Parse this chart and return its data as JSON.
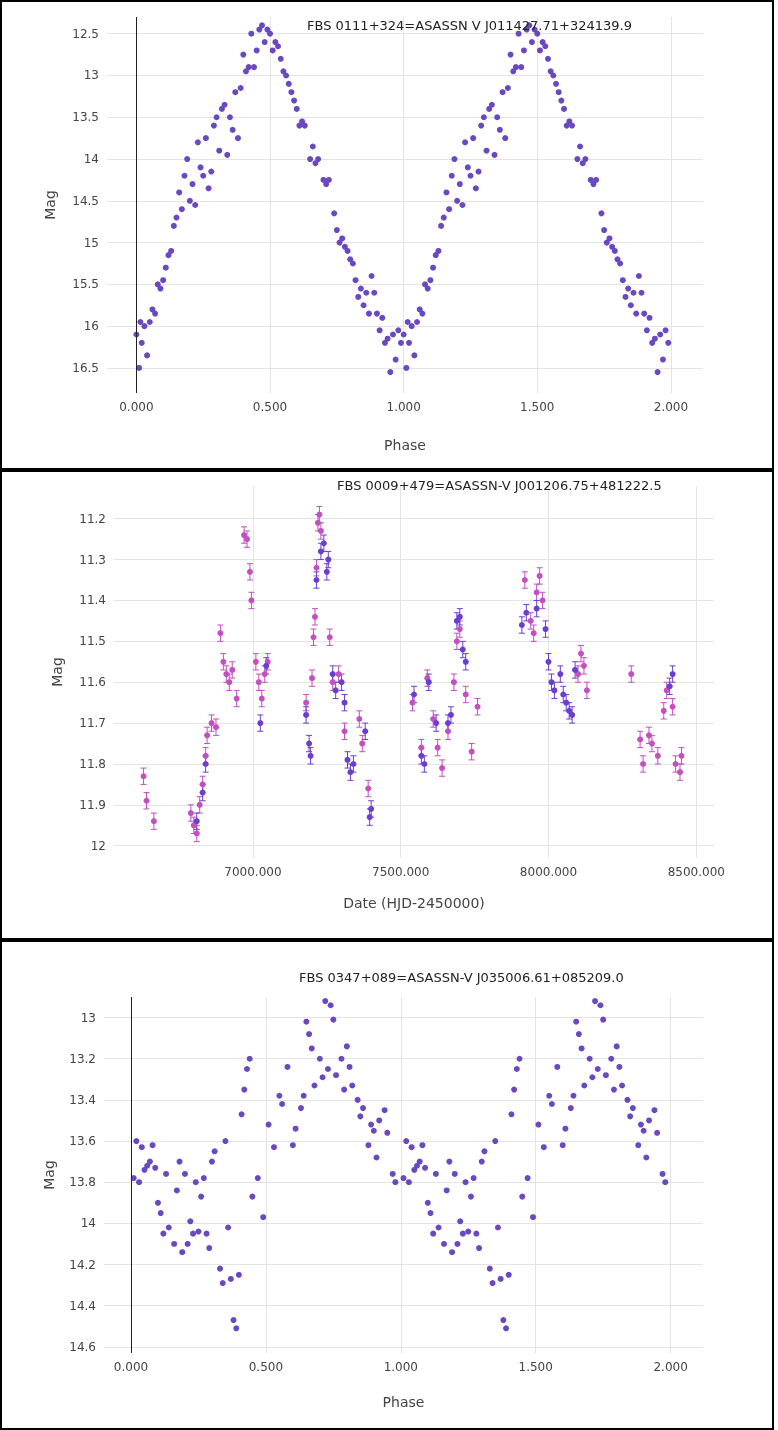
{
  "chart_data": [
    {
      "type": "scatter",
      "title": "FBS 0111+324=ASASSN V J011427.71+324139.9",
      "xlabel": "Phase",
      "ylabel": "Mag",
      "grid": true,
      "marker": "circle",
      "xlim": [
        -0.11,
        2.12
      ],
      "ylim": [
        16.8,
        12.3
      ],
      "xticks": [
        {
          "value": 0,
          "label": "0.000"
        },
        {
          "value": 0.5,
          "label": "0.500"
        },
        {
          "value": 1,
          "label": "1.000"
        },
        {
          "value": 1.5,
          "label": "1.500"
        },
        {
          "value": 2,
          "label": "2.000"
        }
      ],
      "yticks": [
        12.5,
        13,
        13.5,
        14,
        14.5,
        15,
        15.5,
        16,
        16.5
      ],
      "ref_lines": [
        {
          "axis": "x",
          "value": 0,
          "color": "#222222"
        }
      ],
      "series": [
        {
          "color": "#6a48c0",
          "x": [
            0,
            0.01,
            0.015,
            0.02,
            0.03,
            0.04,
            0.05,
            0.06,
            0.07,
            0.08,
            0.09,
            0.1,
            0.11,
            0.12,
            0.13,
            0.14,
            0.15,
            0.16,
            0.17,
            0.18,
            0.19,
            0.2,
            0.21,
            0.22,
            0.23,
            0.24,
            0.25,
            0.26,
            0.27,
            0.28,
            0.29,
            0.3,
            0.31,
            0.32,
            0.33,
            0.34,
            0.35,
            0.36,
            0.37,
            0.38,
            0.39,
            0.4,
            0.41,
            0.42,
            0.43,
            0.44,
            0.45,
            0.46,
            0.47,
            0.48,
            0.49,
            0.5,
            0.51,
            0.52,
            0.53,
            0.54,
            0.55,
            0.56,
            0.57,
            0.58,
            0.59,
            0.6,
            0.61,
            0.62,
            0.63,
            0.65,
            0.66,
            0.67,
            0.68,
            0.7,
            0.71,
            0.72,
            0.74,
            0.75,
            0.76,
            0.77,
            0.78,
            0.79,
            0.8,
            0.81,
            0.82,
            0.83,
            0.84,
            0.85,
            0.86,
            0.87,
            0.88,
            0.89,
            0.9,
            0.91,
            0.92,
            0.93,
            0.94,
            0.95,
            0.96,
            0.97,
            0.98,
            0.99,
            1,
            1.01,
            1.015,
            1.02,
            1.03,
            1.04,
            1.05,
            1.06,
            1.07,
            1.08,
            1.09,
            1.1,
            1.11,
            1.12,
            1.13,
            1.14,
            1.15,
            1.16,
            1.17,
            1.18,
            1.19,
            1.2,
            1.21,
            1.22,
            1.23,
            1.24,
            1.25,
            1.26,
            1.27,
            1.28,
            1.29,
            1.3,
            1.31,
            1.32,
            1.33,
            1.34,
            1.35,
            1.36,
            1.37,
            1.38,
            1.39,
            1.4,
            1.41,
            1.42,
            1.43,
            1.44,
            1.45,
            1.46,
            1.47,
            1.48,
            1.49,
            1.5,
            1.51,
            1.52,
            1.53,
            1.54,
            1.55,
            1.56,
            1.57,
            1.58,
            1.59,
            1.6,
            1.61,
            1.62,
            1.63,
            1.65,
            1.66,
            1.67,
            1.68,
            1.7,
            1.71,
            1.72,
            1.74,
            1.75,
            1.76,
            1.77,
            1.78,
            1.79,
            1.8,
            1.81,
            1.82,
            1.83,
            1.84,
            1.85,
            1.86,
            1.87,
            1.88,
            1.89,
            1.9,
            1.91,
            1.92,
            1.93,
            1.94,
            1.95,
            1.96,
            1.97,
            1.98,
            1.99
          ],
          "values": [
            16.1,
            16.5,
            15.95,
            16.2,
            16.0,
            16.35,
            15.95,
            15.8,
            15.85,
            15.5,
            15.55,
            15.45,
            15.3,
            15.15,
            15.1,
            14.8,
            14.7,
            14.4,
            14.6,
            14.2,
            14.0,
            14.5,
            14.3,
            14.55,
            13.8,
            14.1,
            14.2,
            13.75,
            14.35,
            14.15,
            13.6,
            13.5,
            13.9,
            13.4,
            13.35,
            13.95,
            13.5,
            13.65,
            13.2,
            13.75,
            13.15,
            12.75,
            12.95,
            12.9,
            12.5,
            12.9,
            12.7,
            12.45,
            12.4,
            12.6,
            12.45,
            12.5,
            12.7,
            12.6,
            12.65,
            12.8,
            12.95,
            13.0,
            13.1,
            13.2,
            13.3,
            13.4,
            13.6,
            13.55,
            13.6,
            14.0,
            13.85,
            14.05,
            14.0,
            14.25,
            14.3,
            14.25,
            14.65,
            14.85,
            15.0,
            14.95,
            15.05,
            15.1,
            15.2,
            15.25,
            15.45,
            15.65,
            15.55,
            15.75,
            15.6,
            15.85,
            15.4,
            15.6,
            15.85,
            16.05,
            15.9,
            16.2,
            16.15,
            16.55,
            16.1,
            16.4,
            16.05,
            16.2,
            16.1,
            16.5,
            15.95,
            16.2,
            16.0,
            16.35,
            15.95,
            15.8,
            15.85,
            15.5,
            15.55,
            15.45,
            15.3,
            15.15,
            15.1,
            14.8,
            14.7,
            14.4,
            14.6,
            14.2,
            14.0,
            14.5,
            14.3,
            14.55,
            13.8,
            14.1,
            14.2,
            13.75,
            14.35,
            14.15,
            13.6,
            13.5,
            13.9,
            13.4,
            13.35,
            13.95,
            13.5,
            13.65,
            13.2,
            13.75,
            13.15,
            12.75,
            12.95,
            12.9,
            12.5,
            12.9,
            12.7,
            12.45,
            12.4,
            12.6,
            12.45,
            12.5,
            12.7,
            12.6,
            12.65,
            12.8,
            12.95,
            13.0,
            13.1,
            13.2,
            13.3,
            13.4,
            13.6,
            13.55,
            13.6,
            14.0,
            13.85,
            14.05,
            14.0,
            14.25,
            14.3,
            14.25,
            14.65,
            14.85,
            15.0,
            14.95,
            15.05,
            15.1,
            15.2,
            15.25,
            15.45,
            15.65,
            15.55,
            15.75,
            15.6,
            15.85,
            15.4,
            15.6,
            15.85,
            16.05,
            15.9,
            16.2,
            16.15,
            16.55,
            16.1,
            16.4,
            16.05,
            16.2
          ]
        }
      ]
    },
    {
      "type": "scatter",
      "title": "FBS 0009+479=ASASSN-V J001206.75+481222.5",
      "xlabel": "Date (HJD-2450000)",
      "ylabel": "Mag",
      "grid": true,
      "marker": "circle",
      "xlim": [
        6530,
        8560
      ],
      "ylim": [
        12.03,
        11.12
      ],
      "xticks": [
        {
          "value": 7000,
          "label": "7000.000"
        },
        {
          "value": 7500,
          "label": "7500.000"
        },
        {
          "value": 8000,
          "label": "8000.000"
        },
        {
          "value": 8500,
          "label": "8500.000"
        }
      ],
      "yticks": [
        11.2,
        11.3,
        11.4,
        11.5,
        11.6,
        11.7,
        11.8,
        11.9,
        12
      ],
      "series": [
        {
          "color": "#c34fc0",
          "x": [
            6630,
            6640,
            6665,
            6790,
            6800,
            6810,
            6820,
            6830,
            6840,
            6845,
            6860,
            6875,
            6890,
            6900,
            6910,
            6920,
            6930,
            6945,
            6970,
            6980,
            6990,
            6995,
            7010,
            7020,
            7030,
            7040,
            7050,
            7180,
            7200,
            7205,
            7210,
            7215,
            7220,
            7225,
            7230,
            7260,
            7270,
            7290,
            7310,
            7360,
            7370,
            7390,
            7540,
            7570,
            7590,
            7610,
            7625,
            7640,
            7660,
            7680,
            7690,
            7700,
            7720,
            7740,
            7760,
            7920,
            7940,
            7950,
            7960,
            7970,
            7980,
            8100,
            8110,
            8120,
            8130,
            8280,
            8310,
            8320,
            8340,
            8350,
            8370,
            8390,
            8400,
            8420,
            8430,
            8445,
            8450
          ],
          "values": [
            11.83,
            11.89,
            11.94,
            11.92,
            11.95,
            11.97,
            11.9,
            11.85,
            11.78,
            11.73,
            11.7,
            11.71,
            11.48,
            11.55,
            11.58,
            11.6,
            11.57,
            11.64,
            11.24,
            11.25,
            11.33,
            11.4,
            11.55,
            11.6,
            11.64,
            11.58,
            11.55,
            11.65,
            11.59,
            11.49,
            11.44,
            11.32,
            11.21,
            11.19,
            11.23,
            11.49,
            11.6,
            11.58,
            11.72,
            11.69,
            11.75,
            11.86,
            11.65,
            11.76,
            11.59,
            11.69,
            11.76,
            11.81,
            11.72,
            11.6,
            11.5,
            11.47,
            11.63,
            11.77,
            11.66,
            11.35,
            11.45,
            11.48,
            11.38,
            11.34,
            11.4,
            11.58,
            11.53,
            11.56,
            11.62,
            11.58,
            11.74,
            11.8,
            11.73,
            11.75,
            11.78,
            11.67,
            11.62,
            11.66,
            11.8,
            11.82,
            11.78
          ],
          "errors": [
            0.02,
            0.02,
            0.02,
            0.02,
            0.02,
            0.02,
            0.02,
            0.02,
            0.02,
            0.02,
            0.02,
            0.02,
            0.02,
            0.02,
            0.02,
            0.02,
            0.02,
            0.02,
            0.02,
            0.02,
            0.02,
            0.02,
            0.02,
            0.02,
            0.02,
            0.02,
            0.02,
            0.02,
            0.02,
            0.02,
            0.02,
            0.02,
            0.02,
            0.02,
            0.02,
            0.02,
            0.02,
            0.02,
            0.02,
            0.02,
            0.02,
            0.02,
            0.02,
            0.02,
            0.02,
            0.02,
            0.02,
            0.02,
            0.02,
            0.02,
            0.02,
            0.02,
            0.02,
            0.02,
            0.02,
            0.02,
            0.02,
            0.02,
            0.02,
            0.02,
            0.02,
            0.02,
            0.02,
            0.02,
            0.02,
            0.02,
            0.02,
            0.02,
            0.02,
            0.02,
            0.02,
            0.02,
            0.02,
            0.02,
            0.02,
            0.02,
            0.02
          ]
        },
        {
          "color": "#6a3fd0",
          "x": [
            6810,
            6830,
            6840,
            7025,
            7045,
            7180,
            7190,
            7195,
            7215,
            7230,
            7240,
            7250,
            7255,
            7270,
            7280,
            7300,
            7310,
            7320,
            7330,
            7340,
            7380,
            7395,
            7400,
            7545,
            7570,
            7580,
            7595,
            7620,
            7660,
            7670,
            7690,
            7700,
            7710,
            7720,
            7910,
            7925,
            7960,
            7990,
            8000,
            8010,
            8020,
            8040,
            8050,
            8060,
            8070,
            8080,
            8090,
            8410,
            8420
          ],
          "values": [
            11.94,
            11.87,
            11.8,
            11.7,
            11.56,
            11.68,
            11.75,
            11.78,
            11.35,
            11.28,
            11.26,
            11.33,
            11.3,
            11.58,
            11.62,
            11.6,
            11.65,
            11.79,
            11.82,
            11.8,
            11.72,
            11.93,
            11.91,
            11.63,
            11.78,
            11.8,
            11.6,
            11.7,
            11.7,
            11.68,
            11.45,
            11.44,
            11.52,
            11.55,
            11.46,
            11.43,
            11.42,
            11.47,
            11.55,
            11.6,
            11.62,
            11.58,
            11.63,
            11.65,
            11.67,
            11.68,
            11.57,
            11.61,
            11.58
          ],
          "errors": [
            0.02,
            0.02,
            0.02,
            0.02,
            0.02,
            0.02,
            0.02,
            0.02,
            0.02,
            0.02,
            0.02,
            0.02,
            0.02,
            0.02,
            0.02,
            0.02,
            0.02,
            0.02,
            0.02,
            0.02,
            0.02,
            0.02,
            0.02,
            0.02,
            0.02,
            0.02,
            0.02,
            0.02,
            0.02,
            0.02,
            0.02,
            0.02,
            0.02,
            0.02,
            0.02,
            0.02,
            0.02,
            0.02,
            0.02,
            0.02,
            0.02,
            0.02,
            0.02,
            0.02,
            0.02,
            0.02,
            0.02,
            0.02,
            0.02
          ]
        }
      ]
    },
    {
      "type": "scatter",
      "title": "FBS 0347+089=ASASSN-V J035006.61+085209.0",
      "xlabel": "Phase",
      "ylabel": "Mag",
      "grid": true,
      "marker": "circle",
      "xlim": [
        -0.1,
        2.12
      ],
      "ylim": [
        14.63,
        12.9
      ],
      "xticks": [
        {
          "value": 0,
          "label": "0.000"
        },
        {
          "value": 0.5,
          "label": "0.500"
        },
        {
          "value": 1,
          "label": "1.000"
        },
        {
          "value": 1.5,
          "label": "1.500"
        },
        {
          "value": 2,
          "label": "2.000"
        }
      ],
      "yticks": [
        13,
        13.2,
        13.4,
        13.6,
        13.8,
        14,
        14.2,
        14.4,
        14.6
      ],
      "ref_lines": [
        {
          "axis": "x",
          "value": 0,
          "color": "#222222"
        }
      ],
      "series": [
        {
          "color": "#6a48c0",
          "x": [
            0.01,
            0.02,
            0.03,
            0.04,
            0.05,
            0.06,
            0.07,
            0.08,
            0.09,
            0.1,
            0.11,
            0.12,
            0.13,
            0.14,
            0.16,
            0.17,
            0.18,
            0.19,
            0.2,
            0.21,
            0.22,
            0.23,
            0.24,
            0.25,
            0.26,
            0.27,
            0.28,
            0.29,
            0.3,
            0.31,
            0.33,
            0.34,
            0.35,
            0.36,
            0.37,
            0.38,
            0.39,
            0.4,
            0.41,
            0.42,
            0.43,
            0.44,
            0.45,
            0.47,
            0.49,
            0.51,
            0.53,
            0.55,
            0.56,
            0.58,
            0.6,
            0.61,
            0.63,
            0.64,
            0.65,
            0.66,
            0.67,
            0.68,
            0.7,
            0.71,
            0.72,
            0.73,
            0.74,
            0.75,
            0.76,
            0.78,
            0.79,
            0.8,
            0.81,
            0.82,
            0.84,
            0.85,
            0.86,
            0.88,
            0.89,
            0.9,
            0.91,
            0.92,
            0.94,
            0.95,
            0.97,
            0.98,
            1.01,
            1.02,
            1.03,
            1.04,
            1.05,
            1.06,
            1.07,
            1.08,
            1.09,
            1.1,
            1.11,
            1.12,
            1.13,
            1.14,
            1.16,
            1.17,
            1.18,
            1.19,
            1.2,
            1.21,
            1.22,
            1.23,
            1.24,
            1.25,
            1.26,
            1.27,
            1.28,
            1.29,
            1.3,
            1.31,
            1.33,
            1.34,
            1.35,
            1.36,
            1.37,
            1.38,
            1.39,
            1.4,
            1.41,
            1.42,
            1.43,
            1.44,
            1.45,
            1.47,
            1.49,
            1.51,
            1.53,
            1.55,
            1.56,
            1.58,
            1.6,
            1.61,
            1.63,
            1.64,
            1.65,
            1.66,
            1.67,
            1.68,
            1.7,
            1.71,
            1.72,
            1.73,
            1.74,
            1.75,
            1.76,
            1.78,
            1.79,
            1.8,
            1.81,
            1.82,
            1.84,
            1.85,
            1.86,
            1.88,
            1.89,
            1.9,
            1.91,
            1.92,
            1.94,
            1.95,
            1.97,
            1.98
          ],
          "values": [
            13.78,
            13.6,
            13.8,
            13.63,
            13.74,
            13.72,
            13.7,
            13.62,
            13.73,
            13.9,
            13.95,
            14.05,
            13.76,
            14.02,
            14.1,
            13.84,
            13.7,
            14.14,
            13.76,
            14.1,
            13.99,
            14.05,
            13.8,
            14.04,
            13.87,
            13.78,
            14.05,
            14.12,
            13.7,
            13.65,
            14.22,
            14.29,
            13.6,
            14.02,
            14.27,
            14.47,
            14.51,
            14.25,
            13.47,
            13.35,
            13.25,
            13.2,
            13.87,
            13.78,
            13.97,
            13.52,
            13.63,
            13.38,
            13.42,
            13.24,
            13.62,
            13.54,
            13.44,
            13.38,
            13.02,
            13.08,
            13.15,
            13.33,
            13.2,
            13.29,
            12.92,
            13.25,
            12.94,
            13.01,
            13.28,
            13.2,
            13.35,
            13.14,
            13.24,
            13.33,
            13.4,
            13.48,
            13.44,
            13.62,
            13.52,
            13.55,
            13.68,
            13.5,
            13.45,
            13.56,
            13.76,
            13.8,
            13.78,
            13.6,
            13.8,
            13.63,
            13.74,
            13.72,
            13.7,
            13.62,
            13.73,
            13.9,
            13.95,
            14.05,
            13.76,
            14.02,
            14.1,
            13.84,
            13.7,
            14.14,
            13.76,
            14.1,
            13.99,
            14.05,
            13.8,
            14.04,
            13.87,
            13.78,
            14.05,
            14.12,
            13.7,
            13.65,
            14.22,
            14.29,
            13.6,
            14.02,
            14.27,
            14.47,
            14.51,
            14.25,
            13.47,
            13.35,
            13.25,
            13.2,
            13.87,
            13.78,
            13.97,
            13.52,
            13.63,
            13.38,
            13.42,
            13.24,
            13.62,
            13.54,
            13.44,
            13.38,
            13.02,
            13.08,
            13.15,
            13.33,
            13.2,
            13.29,
            12.92,
            13.25,
            12.94,
            13.01,
            13.28,
            13.2,
            13.35,
            13.14,
            13.24,
            13.33,
            13.4,
            13.48,
            13.44,
            13.62,
            13.52,
            13.55,
            13.68,
            13.5,
            13.45,
            13.56,
            13.76,
            13.8
          ]
        }
      ]
    }
  ]
}
